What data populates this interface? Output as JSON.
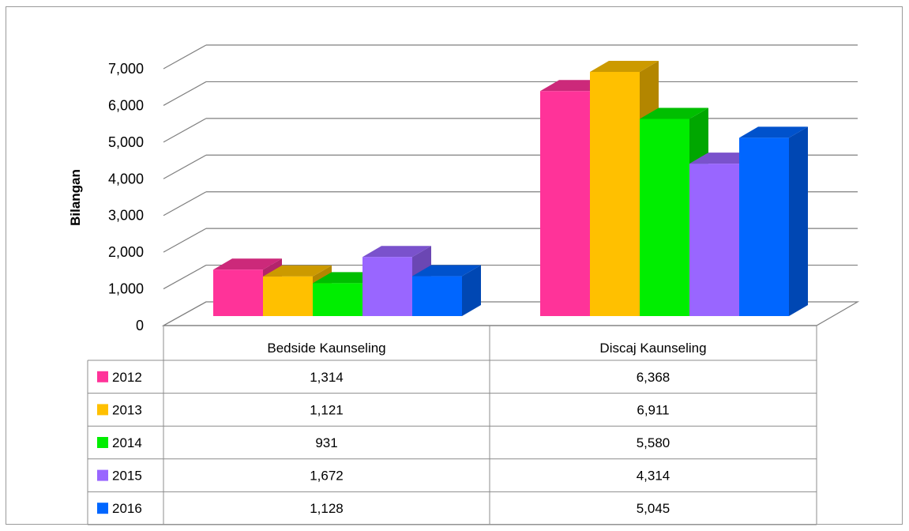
{
  "chart_data": {
    "type": "bar",
    "style": "3d-clustered-column-with-data-table",
    "ylabel": "Bilangan",
    "xlabel": "",
    "ylim": [
      0,
      7000
    ],
    "yticks": [
      "0",
      "1,000",
      "2,000",
      "3,000",
      "4,000",
      "5,000",
      "6,000",
      "7,000"
    ],
    "ytick_values": [
      0,
      1000,
      2000,
      3000,
      4000,
      5000,
      6000,
      7000
    ],
    "grid": true,
    "legend": "data-table-left",
    "categories": [
      "Bedside Kaunseling",
      "Discaj Kaunseling"
    ],
    "series": [
      {
        "name": "2012",
        "color": "#FF3399",
        "values": [
          1314,
          6368
        ],
        "labels": [
          "1,314",
          "6,368"
        ]
      },
      {
        "name": "2013",
        "color": "#FFC000",
        "values": [
          1121,
          6911
        ],
        "labels": [
          "1,121",
          "6,911"
        ]
      },
      {
        "name": "2014",
        "color": "#00EE00",
        "values": [
          931,
          5580
        ],
        "labels": [
          "931",
          "5,580"
        ]
      },
      {
        "name": "2015",
        "color": "#9966FF",
        "values": [
          1672,
          4314
        ],
        "labels": [
          "1,672",
          "4,314"
        ]
      },
      {
        "name": "2016",
        "color": "#0066FF",
        "values": [
          1128,
          5045
        ],
        "labels": [
          "1,128",
          "5,045"
        ]
      }
    ]
  }
}
